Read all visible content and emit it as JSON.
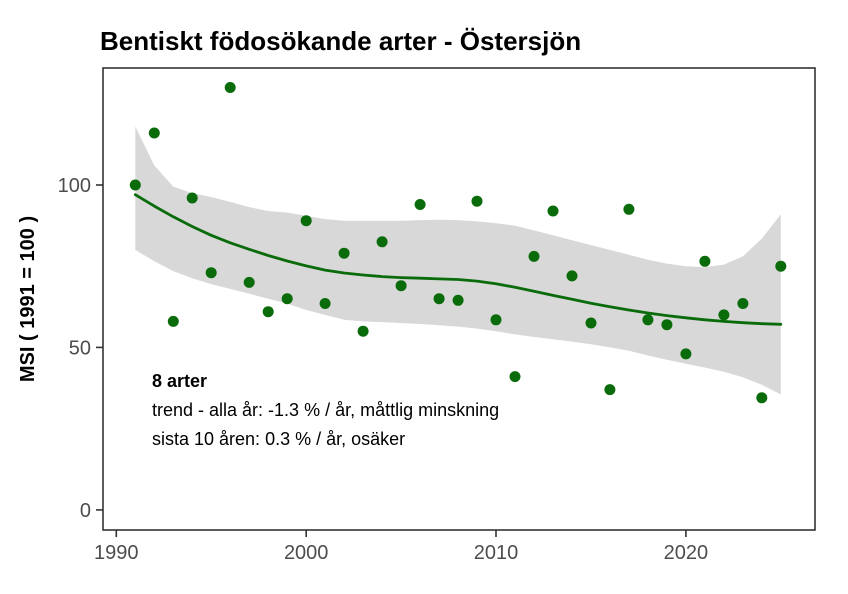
{
  "title": "Bentiskt födosökande arter - Östersjön",
  "y_axis_title": "MSI ( 1991 = 100 )",
  "annotation": {
    "species_count": "8 arter",
    "trend_all_years": "trend - alla år: -1.3 % / år, måttlig minskning",
    "trend_last_10": "sista 10 åren: 0.3 % / år, osäker"
  },
  "colors": {
    "point": "#0a6b0a",
    "trend_line": "#0a6b0a",
    "confidence_band": "#d8d8d8",
    "axis_text": "#4d4d4d",
    "axis_title_text": "#000000",
    "panel_border": "#333333",
    "background": "#ffffff"
  },
  "chart_data": {
    "type": "scatter",
    "title": "Bentiskt födosökande arter - Östersjön",
    "xlabel": "",
    "ylabel": "MSI ( 1991 = 100 )",
    "x_ticks": [
      1990,
      2000,
      2010,
      2020
    ],
    "y_ticks": [
      0,
      50,
      100
    ],
    "xlim": [
      1989.3,
      2026.8
    ],
    "ylim": [
      -6.2,
      136
    ],
    "grid": false,
    "legend_position": "none",
    "series": [
      {
        "name": "MSI årsvärden",
        "type": "scatter",
        "x": [
          1991,
          1992,
          1993,
          1994,
          1995,
          1996,
          1997,
          1998,
          1999,
          2000,
          2001,
          2002,
          2003,
          2004,
          2005,
          2006,
          2007,
          2008,
          2009,
          2010,
          2011,
          2012,
          2013,
          2014,
          2015,
          2016,
          2017,
          2018,
          2019,
          2020,
          2021,
          2022,
          2023,
          2024,
          2025
        ],
        "y": [
          100,
          116,
          58,
          96,
          73,
          130,
          70,
          61,
          65,
          89,
          63.5,
          79,
          55,
          82.5,
          69,
          94,
          65,
          64.5,
          95,
          58.5,
          41,
          78,
          92,
          72,
          57.5,
          37,
          92.5,
          58.5,
          57,
          48,
          76.5,
          60,
          63.5,
          34.5,
          75
        ]
      },
      {
        "name": "trend (loess)",
        "type": "line",
        "x": [
          1991,
          1992,
          1993,
          1994,
          1995,
          1996,
          1997,
          1998,
          1999,
          2000,
          2001,
          2002,
          2003,
          2004,
          2005,
          2006,
          2007,
          2008,
          2009,
          2010,
          2011,
          2012,
          2013,
          2014,
          2015,
          2016,
          2017,
          2018,
          2019,
          2020,
          2021,
          2022,
          2023,
          2024,
          2025
        ],
        "y": [
          97,
          93.5,
          90.2,
          87.2,
          84.5,
          82.2,
          80.2,
          78.3,
          76.6,
          75.1,
          73.8,
          72.9,
          72.3,
          71.8,
          71.5,
          71.3,
          71.1,
          70.9,
          70.4,
          69.6,
          68.5,
          67.3,
          66,
          64.8,
          63.6,
          62.5,
          61.5,
          60.6,
          59.8,
          59.1,
          58.5,
          58,
          57.6,
          57.3,
          57.1
        ]
      },
      {
        "name": "konfidensintervall",
        "type": "band",
        "x": [
          1991,
          1992,
          1993,
          1994,
          1995,
          1996,
          1997,
          1998,
          1999,
          2000,
          2001,
          2002,
          2003,
          2004,
          2005,
          2006,
          2007,
          2008,
          2009,
          2010,
          2011,
          2012,
          2013,
          2014,
          2015,
          2016,
          2017,
          2018,
          2019,
          2020,
          2021,
          2022,
          2023,
          2024,
          2025
        ],
        "upper": [
          118,
          106,
          99.5,
          97.5,
          96.3,
          94.8,
          93.2,
          92,
          91.5,
          90.5,
          89.5,
          89,
          89,
          89,
          89,
          89.2,
          89.3,
          89.2,
          88.8,
          88.2,
          87.5,
          86,
          84.5,
          83,
          81.5,
          80,
          78.5,
          77,
          75.8,
          75,
          74.7,
          75.5,
          78,
          83.5,
          91
        ],
        "lower": [
          80,
          76.5,
          73.5,
          71.3,
          69.5,
          68,
          66.5,
          65,
          63.5,
          61.5,
          60,
          58.5,
          58,
          57.8,
          57.5,
          57.2,
          56.8,
          56.4,
          55.8,
          55,
          54,
          53.2,
          52.5,
          51.8,
          51,
          50,
          49,
          47.5,
          46.2,
          45,
          43.8,
          42.5,
          40.8,
          38.5,
          35.5
        ]
      }
    ],
    "annotations": [
      "8 arter",
      "trend - alla år: -1.3 % / år, måttlig minskning",
      "sista 10 åren: 0.3 % / år, osäker"
    ]
  }
}
